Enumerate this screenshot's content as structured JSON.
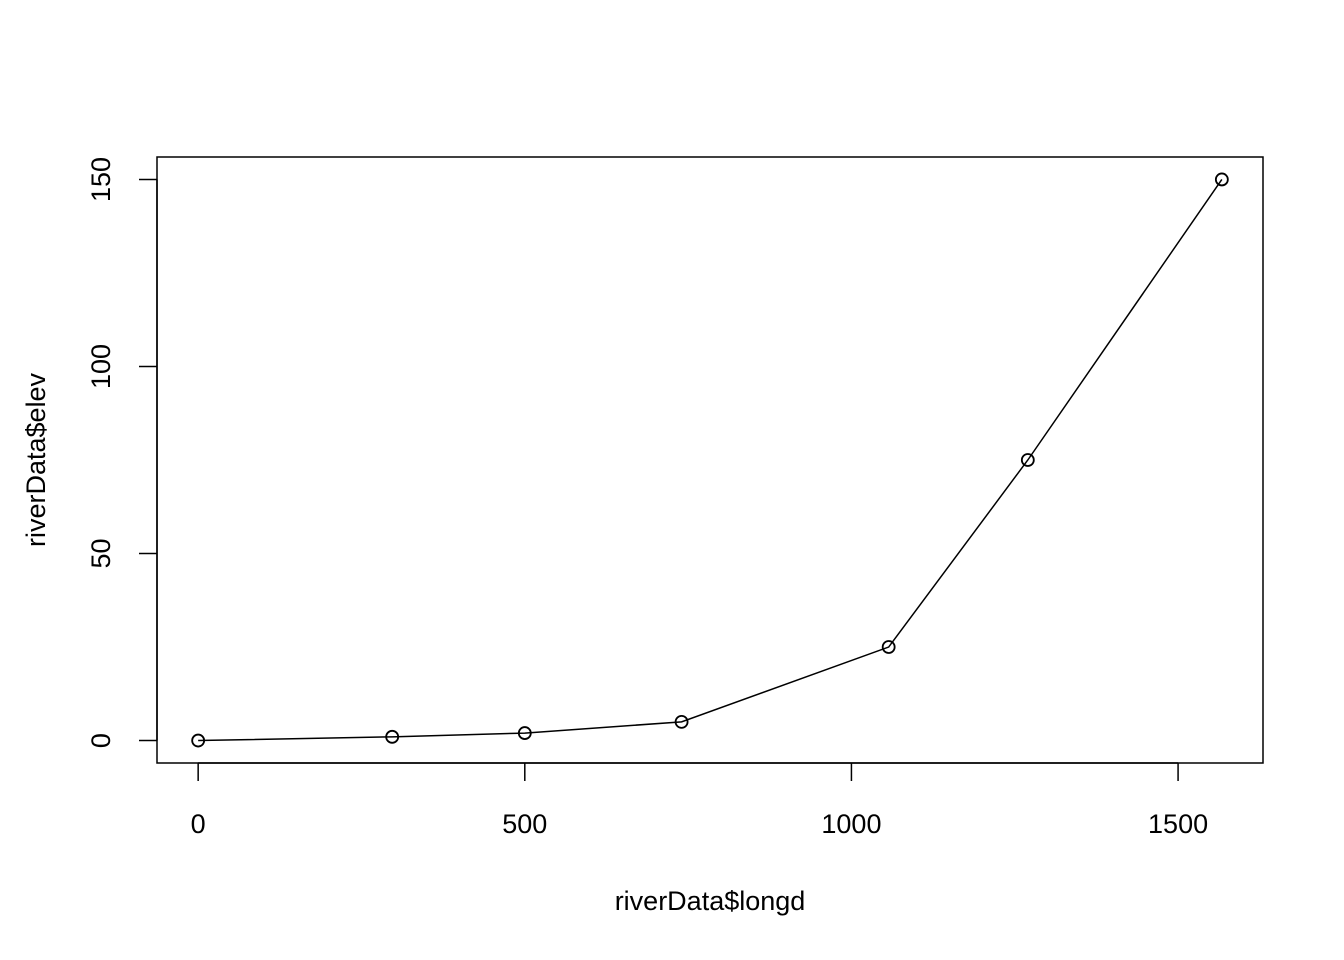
{
  "chart_data": {
    "type": "line",
    "title": "",
    "xlabel": "riverData$longd",
    "ylabel": "riverData$elev",
    "x_ticks": [
      0,
      500,
      1000,
      1500
    ],
    "y_ticks": [
      0,
      50,
      100,
      150
    ],
    "xlim": [
      -63,
      1630
    ],
    "ylim": [
      -6,
      156
    ],
    "grid": false,
    "series": [
      {
        "x": [
          0,
          297,
          500,
          740,
          1057,
          1270,
          1567
        ],
        "y": [
          0,
          1,
          2,
          5,
          25,
          75,
          150
        ]
      }
    ]
  }
}
